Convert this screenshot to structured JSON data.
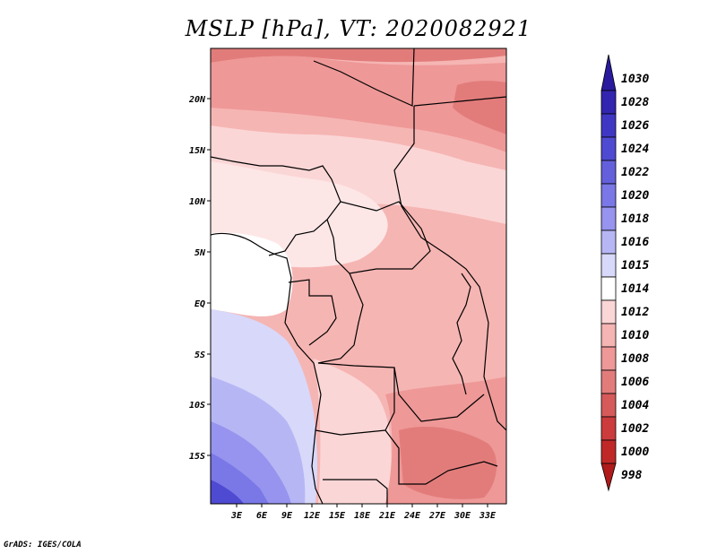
{
  "title": "MSLP [hPa], VT: 2020082921",
  "credit": "GrADS: IGES/COLA",
  "map": {
    "lat_labels": [
      "20N",
      "15N",
      "10N",
      "5N",
      "EQ",
      "5S",
      "10S",
      "15S"
    ],
    "lon_labels": [
      "3E",
      "6E",
      "9E",
      "12E",
      "15E",
      "18E",
      "21E",
      "24E",
      "27E",
      "30E",
      "33E"
    ]
  },
  "colorbar": {
    "levels": [
      "1030",
      "1028",
      "1026",
      "1024",
      "1022",
      "1020",
      "1018",
      "1016",
      "1015",
      "1014",
      "1012",
      "1010",
      "1008",
      "1006",
      "1004",
      "1002",
      "1000",
      "998"
    ],
    "colors": [
      "#2a1a9e",
      "#3226b0",
      "#3f37c4",
      "#4f4ad2",
      "#6460dc",
      "#7a78e6",
      "#9694ee",
      "#b7b6f5",
      "#d8d8fa",
      "#ffffff",
      "#fbd6d6",
      "#f5b5b3",
      "#ee9897",
      "#e27c7b",
      "#d65a5a",
      "#cc3c3c",
      "#c02828",
      "#b01a1a"
    ]
  }
}
